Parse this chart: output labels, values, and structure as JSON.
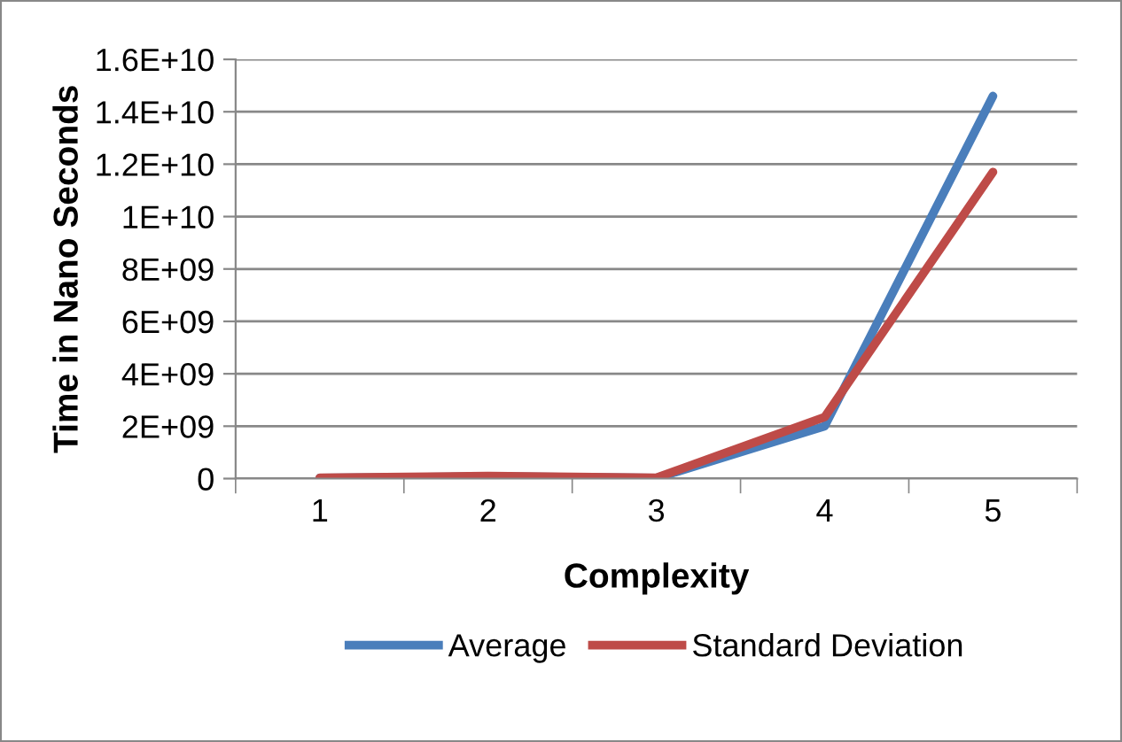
{
  "chart_data": {
    "type": "line",
    "xlabel": "Complexity",
    "ylabel": "Time in Nano Seconds",
    "categories": [
      "1",
      "2",
      "3",
      "4",
      "5"
    ],
    "series": [
      {
        "name": "Average",
        "color": "#4a7ebb",
        "values": [
          20000000,
          80000000,
          20000000,
          2000000000,
          14600000000
        ]
      },
      {
        "name": "Standard Deviation",
        "color": "#be4b48",
        "values": [
          30000000,
          100000000,
          30000000,
          2350000000,
          11700000000
        ]
      }
    ],
    "ylim": [
      0,
      16000000000
    ],
    "yticks": [
      {
        "value": 0,
        "label": "0"
      },
      {
        "value": 2000000000,
        "label": "2E+09"
      },
      {
        "value": 4000000000,
        "label": "4E+09"
      },
      {
        "value": 6000000000,
        "label": "6E+09"
      },
      {
        "value": 8000000000,
        "label": "8E+09"
      },
      {
        "value": 10000000000,
        "label": "1E+10"
      },
      {
        "value": 12000000000,
        "label": "1.2E+10"
      },
      {
        "value": 14000000000,
        "label": "1.4E+10"
      },
      {
        "value": 16000000000,
        "label": "1.6E+10"
      }
    ],
    "grid": "y",
    "legend": "bottom",
    "marker": "none",
    "line_style": "solid"
  }
}
